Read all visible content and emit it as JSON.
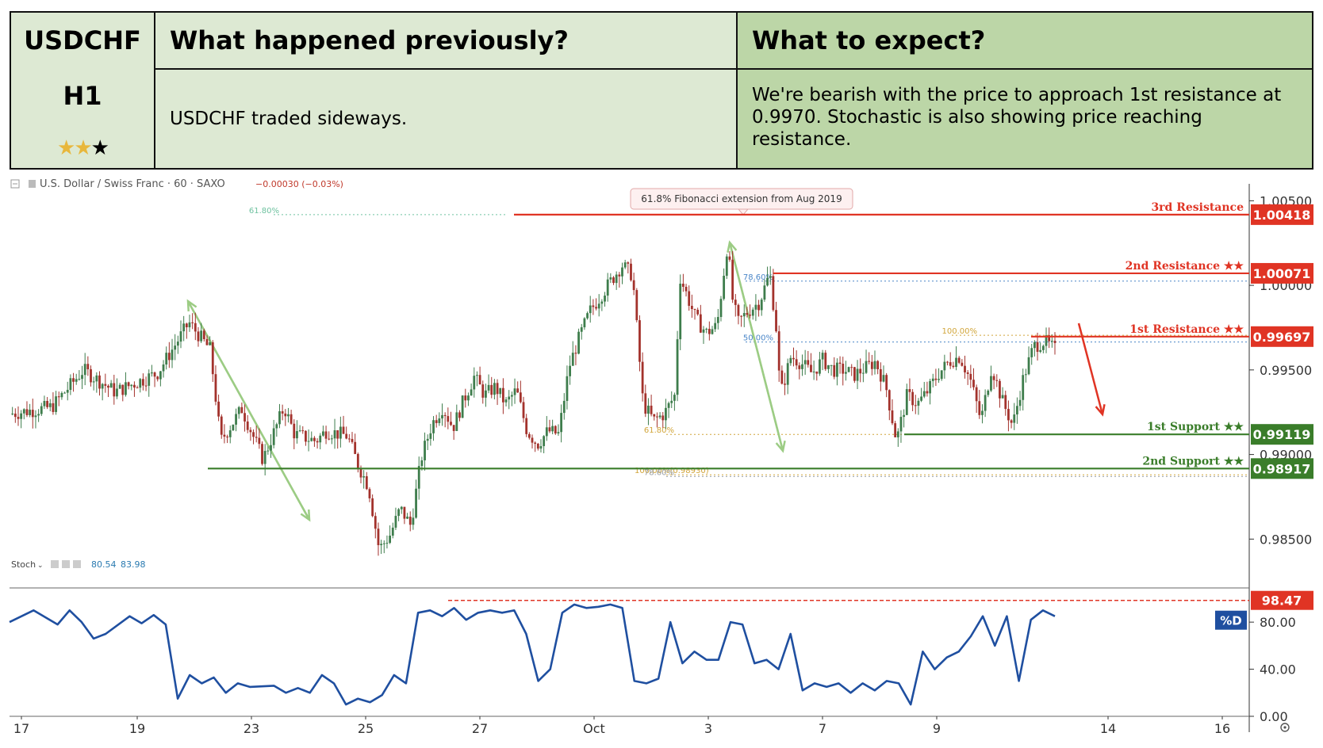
{
  "header": {
    "symbol": "USDCHF",
    "timeframe": "H1",
    "rating_stars": 2,
    "rating_max": 3,
    "prev_title": "What happened previously?",
    "prev_text": "USDCHF traded sideways.",
    "exp_title": "What to expect?",
    "exp_text": "We're bearish with the price to approach 1st resistance at 0.9970. Stochastic is also showing price reaching resistance."
  },
  "chart_data": {
    "type": "candlestick",
    "instrument": "U.S. Dollar / Swiss Franc · 60 · SAXO",
    "change_text": "−0.00030 (−0.03%)",
    "x_tick_labels": [
      "17",
      "19",
      "23",
      "25",
      "27",
      "Oct",
      "3",
      "7",
      "9",
      "14",
      "16"
    ],
    "price_ticks": [
      "1.00500",
      "1.00000",
      "0.99500",
      "0.99000",
      "0.98500"
    ],
    "ylim": [
      0.9823,
      1.006
    ],
    "price_path": [
      [
        0,
        0.9924
      ],
      [
        4,
        0.9928
      ],
      [
        7,
        0.995
      ],
      [
        10,
        0.9937
      ],
      [
        14,
        0.9948
      ],
      [
        17,
        0.9978
      ],
      [
        19,
        0.9962
      ],
      [
        20,
        0.9908
      ],
      [
        22,
        0.9927
      ],
      [
        24,
        0.9897
      ],
      [
        26,
        0.9928
      ],
      [
        27,
        0.9912
      ],
      [
        29,
        0.9908
      ],
      [
        30,
        0.9914
      ],
      [
        32,
        0.9911
      ],
      [
        33,
        0.9894
      ],
      [
        34,
        0.9881
      ],
      [
        35,
        0.9844
      ],
      [
        36,
        0.9852
      ],
      [
        37,
        0.9868
      ],
      [
        38,
        0.9858
      ],
      [
        39,
        0.9898
      ],
      [
        40,
        0.9918
      ],
      [
        41,
        0.9928
      ],
      [
        42,
        0.9916
      ],
      [
        43,
        0.9932
      ],
      [
        44,
        0.9946
      ],
      [
        45,
        0.9935
      ],
      [
        46,
        0.994
      ],
      [
        47,
        0.993
      ],
      [
        48,
        0.9938
      ],
      [
        49,
        0.9914
      ],
      [
        50,
        0.9906
      ],
      [
        51,
        0.9914
      ],
      [
        52,
        0.9912
      ],
      [
        53,
        0.9952
      ],
      [
        54,
        0.997
      ],
      [
        55,
        0.9985
      ],
      [
        56,
        0.9994
      ],
      [
        58,
        1.0012
      ],
      [
        59,
        1.0006
      ],
      [
        60,
        0.993
      ],
      [
        61,
        0.992
      ],
      [
        62,
        0.9924
      ],
      [
        63,
        0.9935
      ],
      [
        63.5,
        1.0005
      ],
      [
        65,
        0.998
      ],
      [
        66,
        0.9972
      ],
      [
        67,
        0.9976
      ],
      [
        68,
        1.0025
      ],
      [
        68.5,
        0.999
      ],
      [
        69,
        0.9978
      ],
      [
        70,
        0.9985
      ],
      [
        71,
        0.999
      ],
      [
        72,
        1.0007
      ],
      [
        72.6,
        0.9975
      ],
      [
        73,
        0.9935
      ],
      [
        74,
        0.9958
      ],
      [
        75,
        0.9954
      ],
      [
        76,
        0.9948
      ],
      [
        77,
        0.9956
      ],
      [
        78,
        0.995
      ],
      [
        79,
        0.995
      ],
      [
        80,
        0.9947
      ],
      [
        81,
        0.9951
      ],
      [
        82,
        0.9955
      ],
      [
        83,
        0.994
      ],
      [
        84,
        0.9908
      ],
      [
        85,
        0.9935
      ],
      [
        86,
        0.993
      ],
      [
        87,
        0.9938
      ],
      [
        88,
        0.9948
      ],
      [
        89,
        0.9955
      ],
      [
        90,
        0.9958
      ],
      [
        91,
        0.9944
      ],
      [
        92,
        0.992
      ],
      [
        93,
        0.9952
      ],
      [
        94,
        0.9932
      ],
      [
        95,
        0.9917
      ],
      [
        96,
        0.9945
      ],
      [
        97,
        0.9964
      ],
      [
        98,
        0.9967
      ],
      [
        99,
        0.9962
      ]
    ],
    "stoch_ticks": [
      "80.00",
      "40.00",
      "0.00"
    ],
    "stoch_ylim": [
      0,
      105
    ],
    "stoch_k": [
      [
        0,
        80
      ],
      [
        2,
        90
      ],
      [
        4,
        78
      ],
      [
        5,
        90
      ],
      [
        6,
        80
      ],
      [
        7,
        66
      ],
      [
        8,
        70
      ],
      [
        10,
        85
      ],
      [
        11,
        79
      ],
      [
        12,
        86
      ],
      [
        13,
        78
      ],
      [
        14,
        15
      ],
      [
        15,
        35
      ],
      [
        16,
        28
      ],
      [
        17,
        33
      ],
      [
        18,
        20
      ],
      [
        19,
        28
      ],
      [
        20,
        25
      ],
      [
        22,
        26
      ],
      [
        23,
        20
      ],
      [
        24,
        24
      ],
      [
        25,
        20
      ],
      [
        26,
        35
      ],
      [
        27,
        28
      ],
      [
        28,
        10
      ],
      [
        29,
        15
      ],
      [
        30,
        12
      ],
      [
        31,
        18
      ],
      [
        32,
        35
      ],
      [
        33,
        28
      ],
      [
        34,
        88
      ],
      [
        35,
        90
      ],
      [
        36,
        85
      ],
      [
        37,
        92
      ],
      [
        38,
        82
      ],
      [
        39,
        88
      ],
      [
        40,
        90
      ],
      [
        41,
        88
      ],
      [
        42,
        90
      ],
      [
        43,
        70
      ],
      [
        44,
        30
      ],
      [
        45,
        40
      ],
      [
        46,
        88
      ],
      [
        47,
        95
      ],
      [
        48,
        92
      ],
      [
        49,
        93
      ],
      [
        50,
        95
      ],
      [
        51,
        92
      ],
      [
        52,
        30
      ],
      [
        53,
        28
      ],
      [
        54,
        32
      ],
      [
        55,
        80
      ],
      [
        56,
        45
      ],
      [
        57,
        55
      ],
      [
        58,
        48
      ],
      [
        59,
        48
      ],
      [
        60,
        80
      ],
      [
        61,
        78
      ],
      [
        62,
        45
      ],
      [
        63,
        48
      ],
      [
        64,
        40
      ],
      [
        65,
        70
      ],
      [
        66,
        22
      ],
      [
        67,
        28
      ],
      [
        68,
        25
      ],
      [
        69,
        28
      ],
      [
        70,
        20
      ],
      [
        71,
        28
      ],
      [
        72,
        22
      ],
      [
        73,
        30
      ],
      [
        74,
        28
      ],
      [
        75,
        10
      ],
      [
        76,
        55
      ],
      [
        77,
        40
      ],
      [
        78,
        50
      ],
      [
        79,
        55
      ],
      [
        80,
        68
      ],
      [
        81,
        85
      ],
      [
        82,
        60
      ],
      [
        83,
        85
      ],
      [
        84,
        30
      ],
      [
        85,
        82
      ],
      [
        86,
        90
      ],
      [
        87,
        85
      ]
    ],
    "stoch_values": [
      "80.54",
      "83.98"
    ],
    "levels": [
      {
        "name": "3rd Resistance",
        "value": "1.00418",
        "price": 1.00418,
        "color": "#e03424"
      },
      {
        "name": "2nd Resistance ★★",
        "value": "1.00071",
        "price": 1.00071,
        "color": "#e03424"
      },
      {
        "name": "1st Resistance ★★",
        "value": "0.99697",
        "price": 0.99697,
        "color": "#e03424"
      },
      {
        "name": "1st Support ★★",
        "value": "0.99119",
        "price": 0.99119,
        "color": "#3a7d2a"
      },
      {
        "name": "2nd Support ★★",
        "value": "0.98917",
        "price": 0.98917,
        "color": "#3a7d2a"
      }
    ],
    "stoch_level": {
      "value": "98.47",
      "level": 98.47,
      "color": "#e03424"
    },
    "stoch_legend": "%D",
    "annotation": "61.8% Fibonacci extension from Aug 2019",
    "fib_labels": [
      {
        "text": "61.80%",
        "price": 1.00418,
        "color": "#6fc2a0"
      },
      {
        "text": "78.60%",
        "price": 1.00025,
        "color": "#4a86c8"
      },
      {
        "text": "50.00%",
        "price": 0.99665,
        "color": "#4a86c8"
      },
      {
        "text": "100.00%",
        "price": 0.99705,
        "color": "#d1a53a"
      },
      {
        "text": "61.80%",
        "price": 0.99119,
        "color": "#d1a53a"
      },
      {
        "text": "100.00%(0.98930)",
        "price": 0.9888,
        "color": "#d1a53a"
      },
      {
        "text": "78.60%",
        "price": 0.9887,
        "color": "#9aa0a6"
      }
    ],
    "stoch_indicator_name": "Stoch"
  }
}
